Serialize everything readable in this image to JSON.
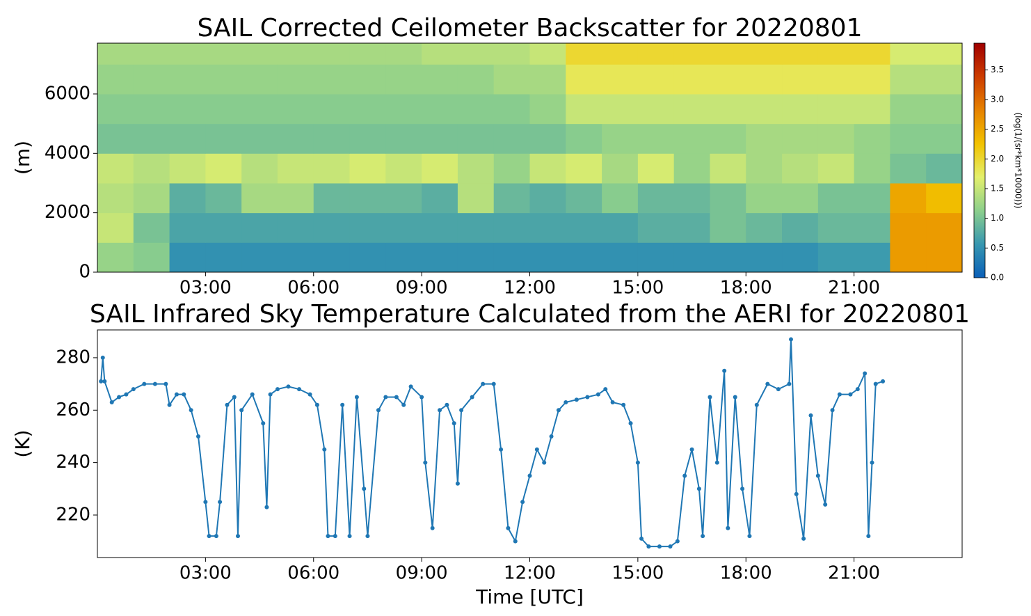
{
  "chart_data": [
    {
      "type": "heatmap",
      "title": "SAIL Corrected Ceilometer Backscatter for 20220801",
      "y_label": "(m)",
      "colorbar_label": "(log(1/(sr*km*10000)))",
      "x_edges": [
        0,
        1,
        2,
        3,
        4,
        5,
        6,
        7,
        8,
        9,
        10,
        11,
        12,
        13,
        14,
        15,
        16,
        17,
        18,
        19,
        20,
        21,
        22,
        23,
        24
      ],
      "y_edges": [
        0,
        1000,
        2000,
        3000,
        4000,
        5000,
        6000,
        7000,
        7710
      ],
      "z": [
        [
          1.2,
          1.1,
          0.5,
          0.5,
          0.5,
          0.5,
          0.5,
          0.5,
          0.5,
          0.5,
          0.5,
          0.5,
          0.5,
          0.5,
          0.5,
          0.5,
          0.5,
          0.5,
          0.5,
          0.5,
          0.6,
          0.6,
          2.6,
          2.6
        ],
        [
          1.5,
          1.0,
          0.7,
          0.7,
          0.7,
          0.7,
          0.7,
          0.7,
          0.7,
          0.7,
          0.7,
          0.7,
          0.7,
          0.7,
          0.7,
          0.8,
          0.8,
          1.0,
          0.9,
          0.8,
          0.9,
          0.9,
          2.6,
          2.6
        ],
        [
          1.4,
          1.3,
          0.8,
          0.9,
          1.3,
          1.3,
          0.9,
          0.9,
          0.9,
          0.8,
          1.4,
          0.9,
          0.8,
          0.9,
          1.1,
          0.9,
          0.9,
          1.0,
          1.2,
          1.2,
          1.0,
          1.0,
          2.5,
          2.3
        ],
        [
          1.5,
          1.4,
          1.5,
          1.6,
          1.4,
          1.5,
          1.5,
          1.6,
          1.5,
          1.6,
          1.4,
          1.2,
          1.5,
          1.6,
          1.3,
          1.6,
          1.2,
          1.5,
          1.3,
          1.4,
          1.5,
          1.2,
          1.0,
          0.9
        ],
        [
          1.0,
          1.0,
          1.0,
          1.0,
          1.0,
          1.0,
          1.0,
          1.0,
          1.0,
          1.0,
          1.0,
          1.0,
          1.0,
          1.1,
          1.2,
          1.2,
          1.2,
          1.2,
          1.3,
          1.3,
          1.3,
          1.2,
          1.1,
          1.1
        ],
        [
          1.1,
          1.1,
          1.1,
          1.1,
          1.1,
          1.1,
          1.1,
          1.1,
          1.1,
          1.1,
          1.1,
          1.1,
          1.2,
          1.5,
          1.5,
          1.5,
          1.5,
          1.5,
          1.5,
          1.5,
          1.5,
          1.5,
          1.2,
          1.2
        ],
        [
          1.2,
          1.2,
          1.2,
          1.2,
          1.2,
          1.2,
          1.2,
          1.2,
          1.2,
          1.2,
          1.2,
          1.3,
          1.3,
          1.8,
          1.8,
          1.8,
          1.8,
          1.8,
          1.8,
          1.8,
          1.8,
          1.8,
          1.4,
          1.4
        ],
        [
          1.3,
          1.3,
          1.3,
          1.3,
          1.3,
          1.3,
          1.3,
          1.3,
          1.3,
          1.4,
          1.4,
          1.4,
          1.5,
          2.0,
          2.0,
          2.0,
          2.0,
          2.0,
          2.0,
          2.0,
          2.0,
          2.0,
          1.6,
          1.6
        ]
      ],
      "colormap": [
        "#0a5fb8",
        "#3797b0",
        "#8ccf8c",
        "#e4f06c",
        "#f2c200",
        "#e68200",
        "#cc3c00",
        "#a00000"
      ],
      "clim": [
        0,
        3.95
      ],
      "cticks": [
        {
          "value": 0,
          "label": "0.0"
        },
        0.5,
        {
          "value": 1,
          "label": "1.0"
        },
        1.5,
        {
          "value": 2,
          "label": "2.0"
        },
        2.5,
        {
          "value": 3,
          "label": "3.0"
        },
        3.5
      ],
      "xlim": [
        0,
        24
      ],
      "ylim": [
        0,
        7710
      ],
      "xticks": [
        {
          "value": 3,
          "label": "03:00"
        },
        {
          "value": 6,
          "label": "06:00"
        },
        {
          "value": 9,
          "label": "09:00"
        },
        {
          "value": 12,
          "label": "12:00"
        },
        {
          "value": 15,
          "label": "15:00"
        },
        {
          "value": 18,
          "label": "18:00"
        },
        {
          "value": 21,
          "label": "21:00"
        }
      ],
      "yticks": [
        0,
        2000,
        4000,
        6000
      ]
    },
    {
      "type": "line",
      "title": "SAIL Infrared Sky Temperature Calculated from the AERI for 20220801",
      "x_label": "Time [UTC]",
      "y_label": "(K)",
      "x": [
        0.1,
        0.15,
        0.2,
        0.4,
        0.6,
        0.8,
        1.0,
        1.3,
        1.6,
        1.9,
        2.0,
        2.2,
        2.4,
        2.6,
        2.8,
        3.0,
        3.1,
        3.3,
        3.4,
        3.6,
        3.8,
        3.9,
        4.0,
        4.3,
        4.6,
        4.7,
        4.8,
        5.0,
        5.3,
        5.6,
        5.9,
        6.1,
        6.3,
        6.4,
        6.6,
        6.8,
        7.0,
        7.2,
        7.4,
        7.5,
        7.8,
        8.0,
        8.3,
        8.5,
        8.7,
        9.0,
        9.1,
        9.3,
        9.5,
        9.7,
        9.9,
        10.0,
        10.1,
        10.4,
        10.7,
        11.0,
        11.2,
        11.4,
        11.6,
        11.8,
        12.0,
        12.2,
        12.4,
        12.6,
        12.8,
        13.0,
        13.3,
        13.6,
        13.9,
        14.1,
        14.3,
        14.6,
        14.8,
        15.0,
        15.1,
        15.3,
        15.6,
        15.9,
        16.1,
        16.3,
        16.5,
        16.7,
        16.8,
        17.0,
        17.2,
        17.4,
        17.5,
        17.7,
        17.9,
        18.1,
        18.3,
        18.6,
        18.9,
        19.2,
        19.25,
        19.4,
        19.6,
        19.8,
        20.0,
        20.2,
        20.4,
        20.6,
        20.9,
        21.1,
        21.3,
        21.4,
        21.5,
        21.6,
        21.8
      ],
      "series": [
        {
          "color": "#1f77b4",
          "values": [
            271,
            280,
            271,
            263,
            265,
            266,
            268,
            270,
            270,
            270,
            262,
            266,
            266,
            260,
            250,
            225,
            212,
            212,
            225,
            262,
            265,
            212,
            260,
            266,
            255,
            223,
            266,
            268,
            269,
            268,
            266,
            262,
            245,
            212,
            212,
            262,
            212,
            265,
            230,
            212,
            260,
            265,
            265,
            262,
            269,
            265,
            240,
            215,
            260,
            262,
            255,
            232,
            260,
            265,
            270,
            270,
            245,
            215,
            210,
            225,
            235,
            245,
            240,
            250,
            260,
            263,
            264,
            265,
            266,
            268,
            263,
            262,
            255,
            240,
            211,
            208,
            208,
            208,
            210,
            235,
            245,
            230,
            212,
            265,
            240,
            275,
            215,
            265,
            230,
            212,
            262,
            270,
            268,
            270,
            287,
            228,
            211,
            258,
            235,
            224,
            260,
            266,
            266,
            268,
            274,
            212,
            240,
            270,
            271
          ]
        }
      ],
      "xlim": [
        0,
        24
      ],
      "ylim": [
        203.8,
        290.6
      ],
      "xticks": [
        {
          "value": 3,
          "label": "03:00"
        },
        {
          "value": 6,
          "label": "06:00"
        },
        {
          "value": 9,
          "label": "09:00"
        },
        {
          "value": 12,
          "label": "12:00"
        },
        {
          "value": 15,
          "label": "15:00"
        },
        {
          "value": 18,
          "label": "18:00"
        },
        {
          "value": 21,
          "label": "21:00"
        }
      ],
      "yticks": [
        220,
        240,
        260,
        280
      ]
    }
  ]
}
